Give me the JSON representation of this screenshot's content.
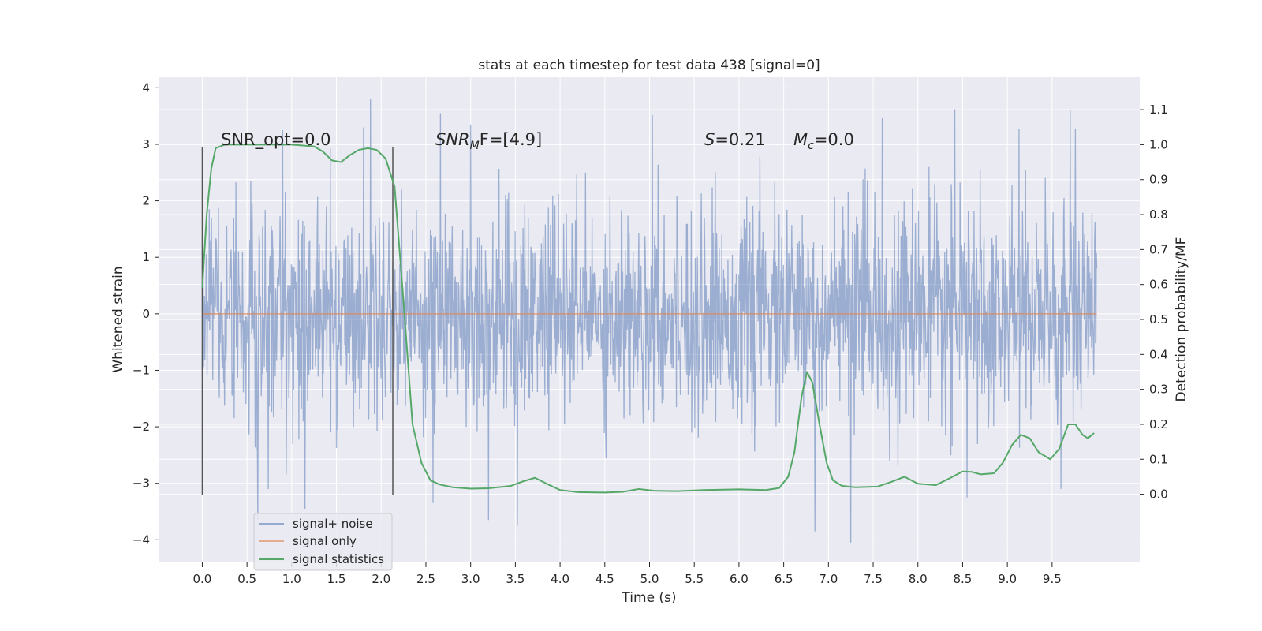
{
  "chart_data": {
    "type": "line",
    "title": "stats at each timestep for test data 438 [signal=0]",
    "xlabel": "Time (s)",
    "ylabel_left": "Whitened strain",
    "ylabel_right": "Detection probability/MF",
    "xlim": [
      -0.48,
      10.48
    ],
    "ylim_left": [
      -4.4,
      4.2
    ],
    "ylim_right": [
      -0.195,
      1.195
    ],
    "x_ticks": [
      "0.0",
      "0.5",
      "1.0",
      "1.5",
      "2.0",
      "2.5",
      "3.0",
      "3.5",
      "4.0",
      "4.5",
      "5.0",
      "5.5",
      "6.0",
      "6.5",
      "7.0",
      "7.5",
      "8.0",
      "8.5",
      "9.0",
      "9.5"
    ],
    "y_ticks_left": [
      "−4",
      "−3",
      "−2",
      "−1",
      "0",
      "1",
      "2",
      "3",
      "4"
    ],
    "y_ticks_right": [
      "0.0",
      "0.1",
      "0.2",
      "0.3",
      "0.4",
      "0.5",
      "0.6",
      "0.7",
      "0.8",
      "0.9",
      "1.0",
      "1.1"
    ],
    "grid": true,
    "legend_position": "lower-left",
    "annotations": {
      "snr_opt": "SNR_opt=0.0",
      "snr_mf_base": "SNR",
      "snr_mf_sub": "M",
      "snr_mf_rest": "F=[4.9]",
      "s_var": "S",
      "s_val": "=0.21",
      "mc_var": "M",
      "mc_sub": "c",
      "mc_val": "=0.0"
    },
    "window_markers": {
      "x": [
        0.0,
        2.13
      ],
      "y_range": [
        -3.2,
        2.95
      ]
    },
    "series": [
      {
        "name": "signal+ noise",
        "axis": "left",
        "color": "#4c72b0",
        "x_range": [
          0.0,
          10.0
        ],
        "points": 2048,
        "std": 1.0,
        "envelope_peaks": [
          [
            0.9,
            3.25
          ],
          [
            1.88,
            3.8
          ],
          [
            2.66,
            3.55
          ],
          [
            3.0,
            3.35
          ],
          [
            5.03,
            3.52
          ],
          [
            7.6,
            3.46
          ],
          [
            8.41,
            3.62
          ],
          [
            9.13,
            3.27
          ],
          [
            9.7,
            3.6
          ],
          [
            9.76,
            3.28
          ]
        ],
        "envelope_troughs": [
          [
            0.62,
            -3.65
          ],
          [
            1.15,
            -3.45
          ],
          [
            2.58,
            -3.35
          ],
          [
            3.2,
            -3.65
          ],
          [
            3.52,
            -3.75
          ],
          [
            6.85,
            -3.85
          ],
          [
            7.25,
            -4.05
          ],
          [
            8.55,
            -3.25
          ],
          [
            9.6,
            -3.1
          ]
        ]
      },
      {
        "name": "signal only",
        "axis": "left",
        "color": "#dd8452",
        "x": [
          0.0,
          10.0
        ],
        "y": [
          0.0,
          0.0
        ]
      },
      {
        "name": "signal statistics",
        "axis": "right",
        "color": "#55a868",
        "x": [
          0.0,
          0.05,
          0.1,
          0.15,
          0.25,
          0.4,
          0.7,
          1.0,
          1.25,
          1.35,
          1.45,
          1.55,
          1.65,
          1.75,
          1.85,
          1.95,
          2.05,
          2.15,
          2.25,
          2.35,
          2.45,
          2.55,
          2.65,
          2.8,
          3.0,
          3.2,
          3.45,
          3.6,
          3.72,
          3.85,
          4.0,
          4.2,
          4.5,
          4.7,
          4.88,
          5.05,
          5.3,
          5.6,
          6.0,
          6.3,
          6.45,
          6.55,
          6.62,
          6.7,
          6.76,
          6.82,
          6.9,
          6.98,
          7.05,
          7.15,
          7.3,
          7.55,
          7.7,
          7.85,
          8.0,
          8.2,
          8.35,
          8.5,
          8.6,
          8.7,
          8.85,
          8.95,
          9.05,
          9.15,
          9.25,
          9.35,
          9.48,
          9.58,
          9.68,
          9.76,
          9.84,
          9.9,
          9.97
        ],
        "y": [
          0.59,
          0.8,
          0.93,
          0.99,
          1.0,
          1.0,
          1.0,
          1.0,
          0.995,
          0.98,
          0.955,
          0.95,
          0.97,
          0.985,
          0.99,
          0.985,
          0.96,
          0.88,
          0.55,
          0.2,
          0.09,
          0.04,
          0.028,
          0.02,
          0.016,
          0.017,
          0.024,
          0.038,
          0.047,
          0.03,
          0.012,
          0.006,
          0.005,
          0.007,
          0.015,
          0.01,
          0.009,
          0.012,
          0.014,
          0.012,
          0.018,
          0.05,
          0.12,
          0.28,
          0.35,
          0.32,
          0.2,
          0.09,
          0.04,
          0.024,
          0.02,
          0.022,
          0.035,
          0.05,
          0.03,
          0.026,
          0.045,
          0.065,
          0.064,
          0.057,
          0.06,
          0.09,
          0.14,
          0.17,
          0.16,
          0.12,
          0.1,
          0.13,
          0.2,
          0.2,
          0.17,
          0.16,
          0.175
        ]
      }
    ]
  }
}
